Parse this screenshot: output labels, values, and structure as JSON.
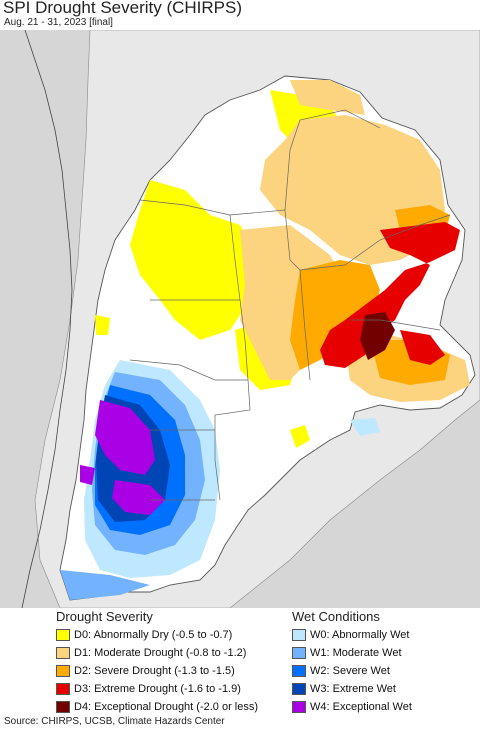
{
  "title": "SPI Drought Severity (CHIRPS)",
  "subtitle": "Aug. 21 - 31, 2023 [final]",
  "source": "Source: CHIRPS, UCSB, Climate Hazards Center",
  "colors": {
    "ocean": "#d6d6d6",
    "land_outside": "#e8e8e8",
    "land": "#ffffff",
    "border": "#666666",
    "d0": "#ffff00",
    "d1": "#fcd37f",
    "d2": "#ffaa00",
    "d3": "#e60000",
    "d4": "#730000",
    "w0": "#bee8ff",
    "w1": "#73b2ff",
    "w2": "#0070ff",
    "w3": "#0045b5",
    "w4": "#a900e6"
  },
  "legend": {
    "drought": {
      "title": "Drought Severity",
      "items": [
        {
          "label": "D0: Abnormally Dry (-0.5 to -0.7)",
          "color": "#ffff00"
        },
        {
          "label": "D1: Moderate Drought (-0.8 to -1.2)",
          "color": "#fcd37f"
        },
        {
          "label": "D2: Severe Drought (-1.3 to -1.5)",
          "color": "#ffaa00"
        },
        {
          "label": "D3: Extreme Drought (-1.6 to -1.9)",
          "color": "#e60000"
        },
        {
          "label": "D4: Exceptional Drought (-2.0 or less)",
          "color": "#730000"
        }
      ]
    },
    "wet": {
      "title": "Wet Conditions",
      "items": [
        {
          "label": "W0: Abnormally Wet",
          "color": "#bee8ff"
        },
        {
          "label": "W1: Moderate Wet",
          "color": "#73b2ff"
        },
        {
          "label": "W2: Severe Wet",
          "color": "#0070ff"
        },
        {
          "label": "W3: Extreme Wet",
          "color": "#0045b5"
        },
        {
          "label": "W4: Exceptional Wet",
          "color": "#a900e6"
        }
      ]
    }
  }
}
